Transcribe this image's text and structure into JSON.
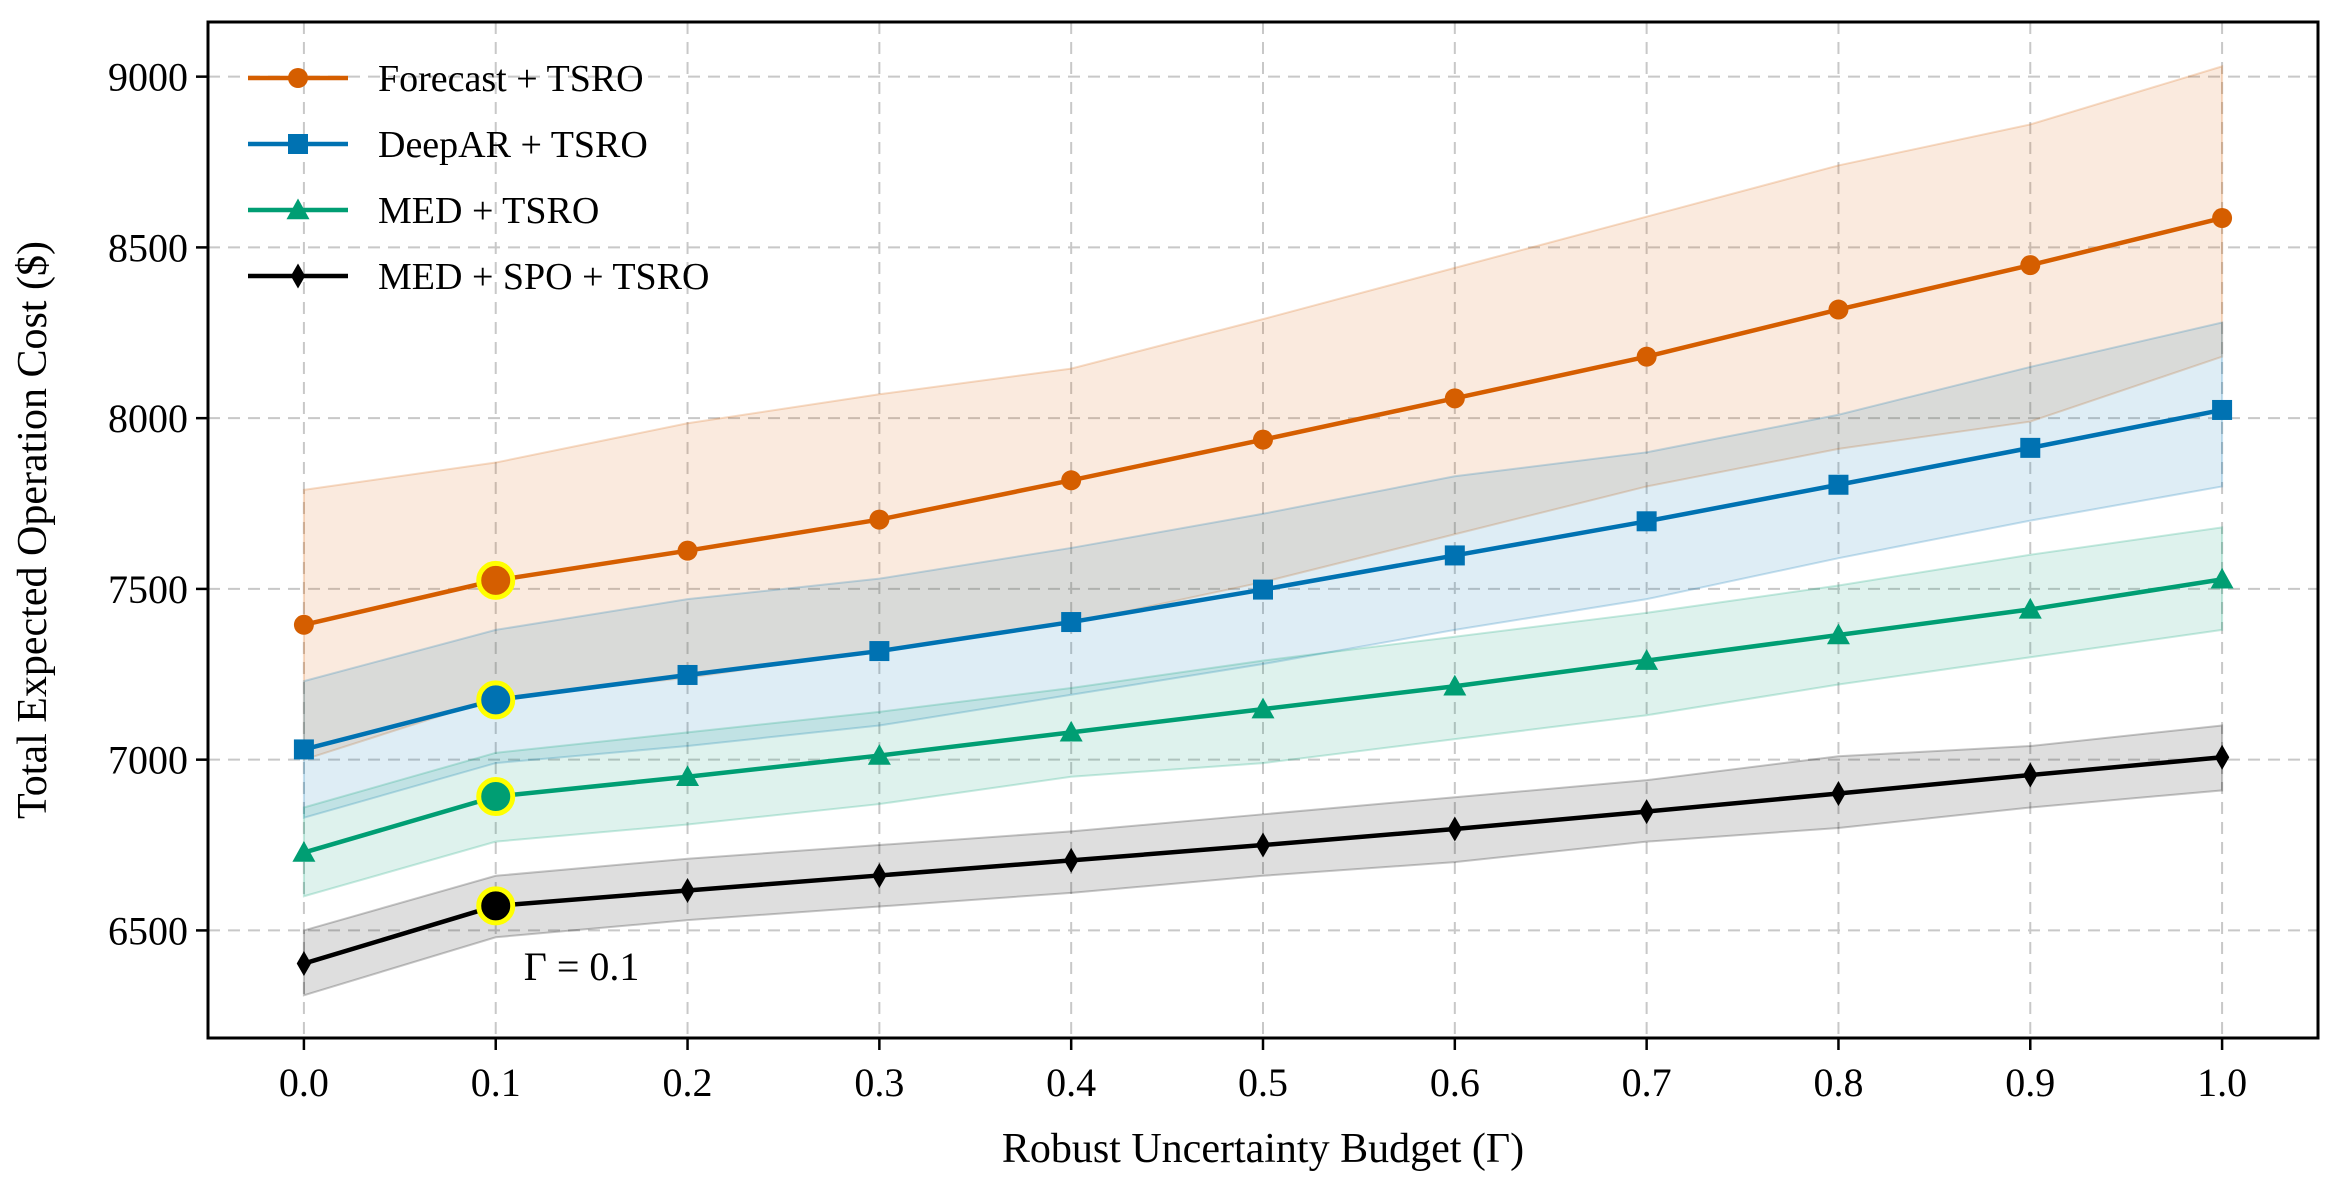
{
  "chart_data": {
    "type": "line",
    "title": "",
    "xlabel": "Robust Uncertainty Budget (Γ)",
    "ylabel": "Total Expected Operation Cost ($)",
    "x": [
      0.0,
      0.1,
      0.2,
      0.3,
      0.4,
      0.5,
      0.6,
      0.7,
      0.8,
      0.9,
      1.0
    ],
    "x_tick_labels": [
      "0.0",
      "0.1",
      "0.2",
      "0.3",
      "0.4",
      "0.5",
      "0.6",
      "0.7",
      "0.8",
      "0.9",
      "1.0"
    ],
    "y_ticks": [
      6500,
      7000,
      7500,
      8000,
      8500,
      9000
    ],
    "y_tick_labels": [
      "6500",
      "7000",
      "7500",
      "8000",
      "8500",
      "9000"
    ],
    "xlim": [
      -0.05,
      1.05
    ],
    "ylim": [
      6185,
      9160
    ],
    "grid": true,
    "legend_position": "top-left",
    "series": [
      {
        "name": "Forecast + TSRO",
        "color": "#d55e00",
        "marker": "circle",
        "values": [
          7395,
          7525,
          7612,
          7703,
          7818,
          7937,
          8058,
          8180,
          8318,
          8448,
          8586
        ],
        "lower": [
          7000,
          7180,
          7240,
          7320,
          7400,
          7520,
          7660,
          7800,
          7910,
          7990,
          8180
        ],
        "upper": [
          7790,
          7870,
          7985,
          8070,
          8145,
          8290,
          8440,
          8590,
          8740,
          8860,
          9030
        ]
      },
      {
        "name": "DeepAR + TSRO",
        "color": "#0072b2",
        "marker": "square",
        "values": [
          7030,
          7175,
          7248,
          7318,
          7403,
          7498,
          7598,
          7698,
          7805,
          7913,
          8024
        ],
        "lower": [
          6830,
          6990,
          7040,
          7100,
          7190,
          7280,
          7380,
          7470,
          7590,
          7700,
          7800
        ],
        "upper": [
          7230,
          7380,
          7470,
          7530,
          7620,
          7720,
          7830,
          7900,
          8010,
          8150,
          8280
        ]
      },
      {
        "name": "MED + TSRO",
        "color": "#009e73",
        "marker": "triangle",
        "values": [
          6728,
          6892,
          6950,
          7012,
          7080,
          7148,
          7215,
          7290,
          7365,
          7440,
          7528
        ],
        "lower": [
          6600,
          6760,
          6810,
          6870,
          6950,
          6990,
          7060,
          7130,
          7220,
          7300,
          7380
        ],
        "upper": [
          6860,
          7020,
          7080,
          7140,
          7210,
          7290,
          7360,
          7430,
          7510,
          7600,
          7680
        ]
      },
      {
        "name": "MED + SPO + TSRO",
        "color": "#000000",
        "marker": "diamond",
        "values": [
          6403,
          6572,
          6617,
          6661,
          6705,
          6750,
          6797,
          6848,
          6901,
          6955,
          7007
        ],
        "lower": [
          6310,
          6480,
          6530,
          6570,
          6610,
          6660,
          6700,
          6760,
          6800,
          6860,
          6910
        ],
        "upper": [
          6500,
          6660,
          6710,
          6750,
          6790,
          6840,
          6890,
          6940,
          7010,
          7040,
          7100
        ]
      }
    ],
    "highlight": {
      "x": 0.1,
      "label": "Γ = 0.1",
      "marker_edge_color": "#ffff00"
    }
  }
}
